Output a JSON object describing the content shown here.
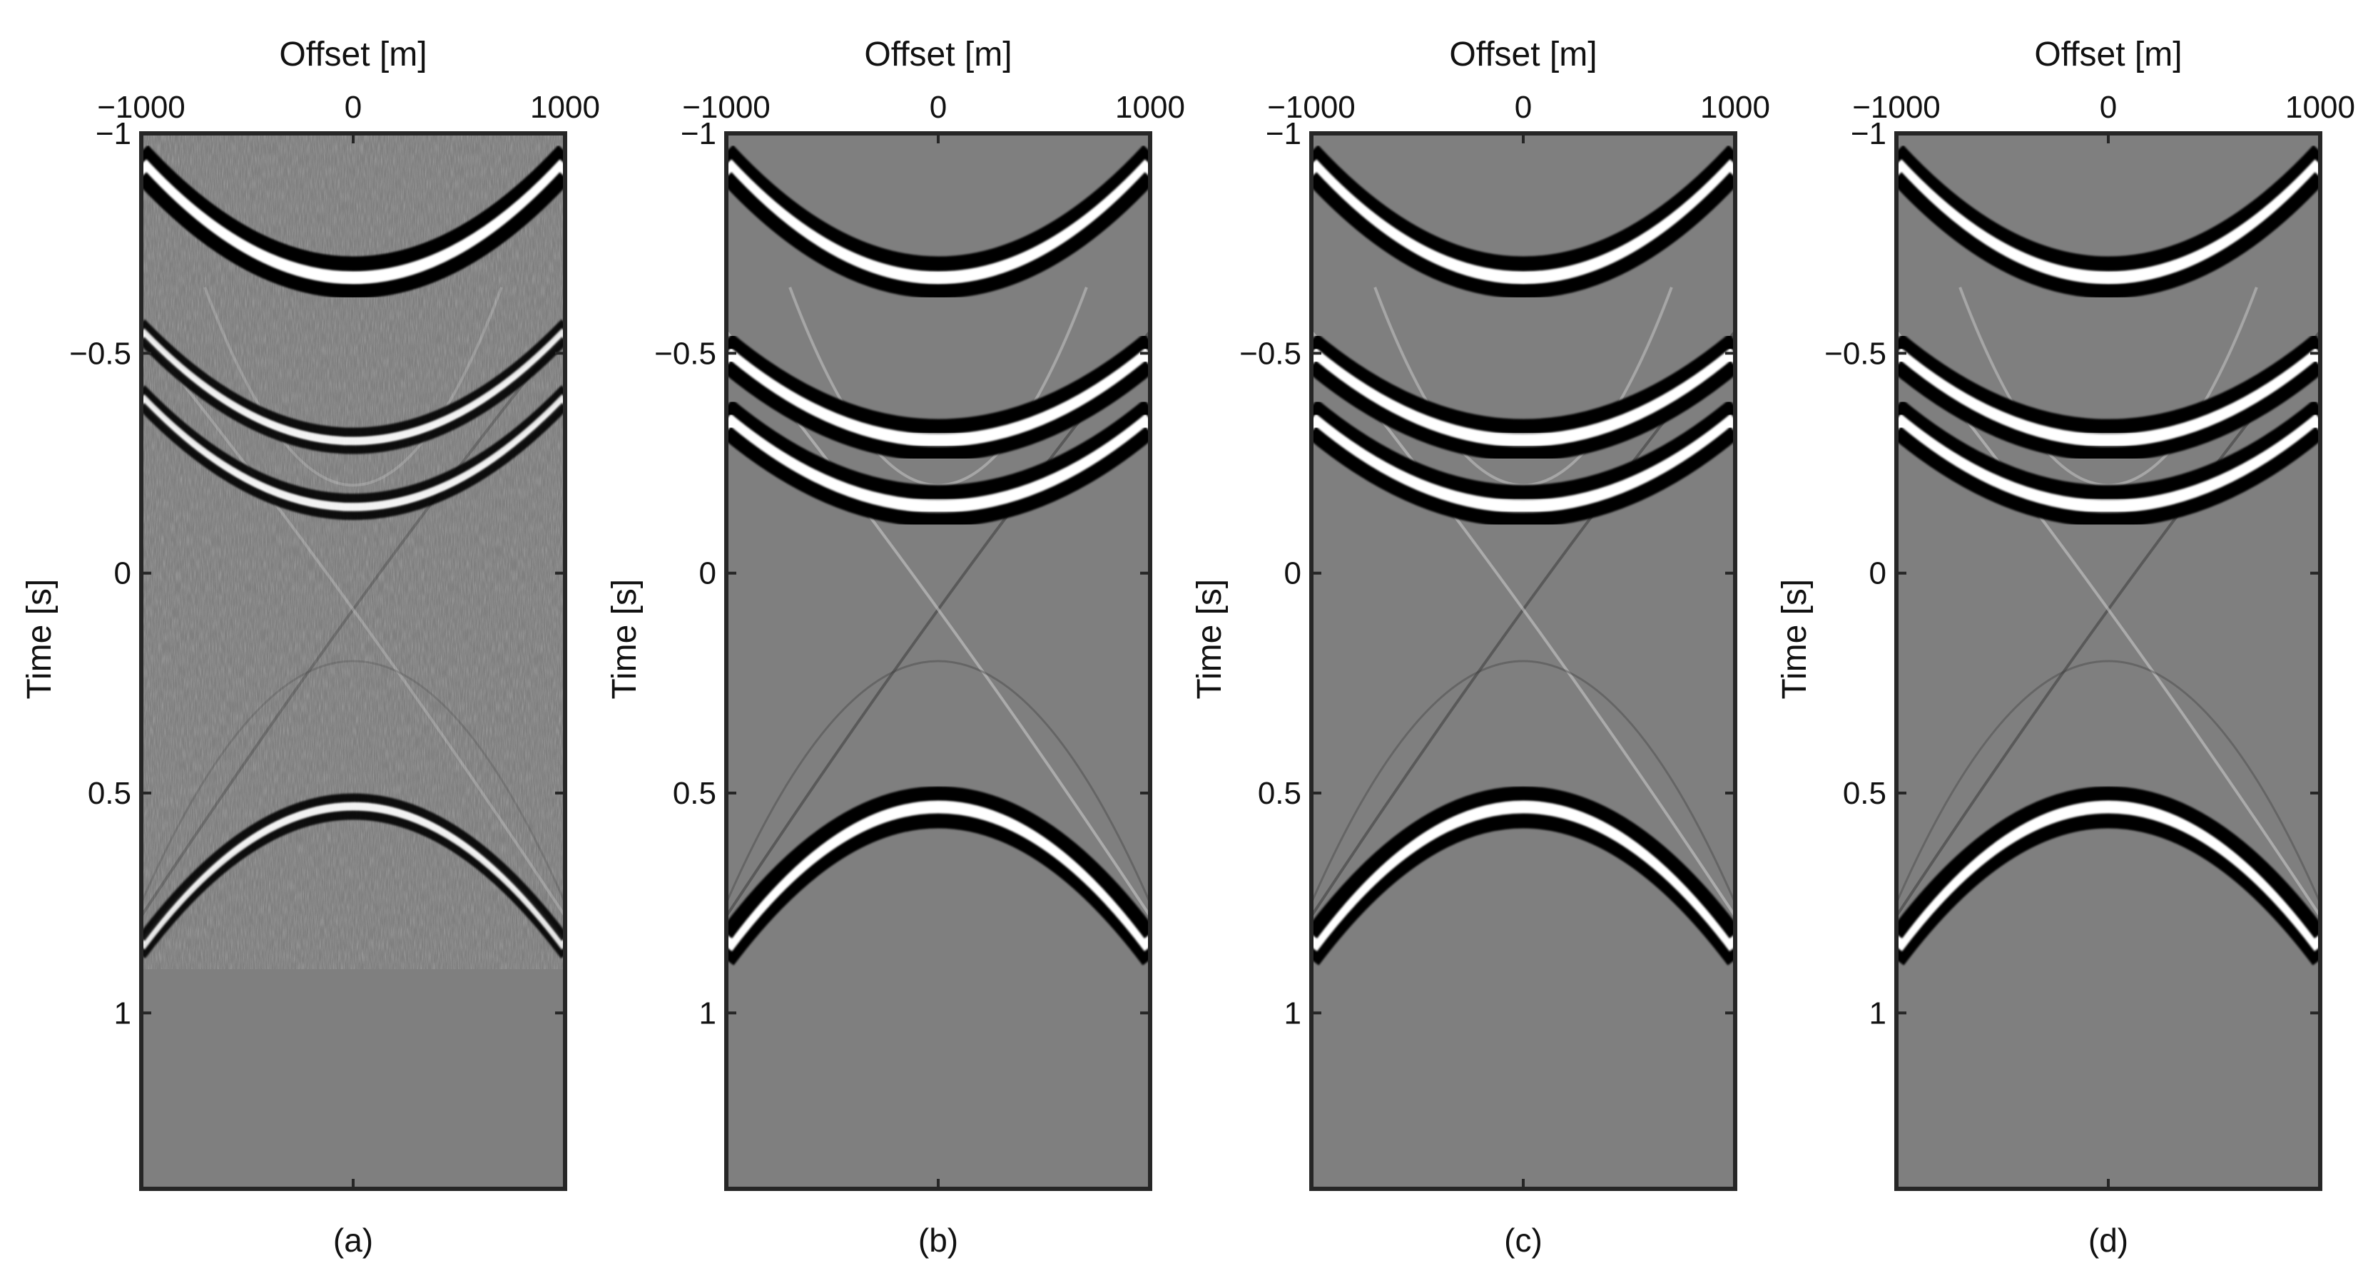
{
  "colors": {
    "panel_background": "#7f7f7f",
    "frame": "#262626",
    "event_dark": "#050505",
    "event_bright": "#ffffff",
    "page": "#ffffff"
  },
  "chart_data": [
    {
      "type": "heatmap",
      "caption": "(a)",
      "xlabel": "Offset [m]",
      "ylabel": "Time [s]",
      "xlim": [
        -1000,
        1000
      ],
      "ylim": [
        -1,
        1.4
      ],
      "y_reversed": true,
      "xticks": [
        -1000,
        0,
        1000
      ],
      "xtick_labels": [
        "−1000",
        "0",
        "1000"
      ],
      "yticks": [
        -1,
        -0.5,
        0,
        0.5,
        1
      ],
      "ytick_labels": [
        "−1",
        "−0.5",
        "0",
        "0.5",
        "1"
      ],
      "events": [
        {
          "kind": "hyperbola_down",
          "apex_time": -0.67,
          "edge_time": -0.93,
          "strength": "strong"
        },
        {
          "kind": "hyperbola_down",
          "apex_time": -0.3,
          "edge_time": -0.55,
          "strength": "medium"
        },
        {
          "kind": "hyperbola_down",
          "apex_time": -0.15,
          "edge_time": -0.4,
          "strength": "medium"
        },
        {
          "kind": "hyperbola_up",
          "apex_time": 0.53,
          "edge_time": 0.85,
          "strength": "medium"
        }
      ],
      "noise": "high"
    },
    {
      "type": "heatmap",
      "caption": "(b)",
      "xlabel": "Offset [m]",
      "ylabel": "Time [s]",
      "xlim": [
        -1000,
        1000
      ],
      "ylim": [
        -1,
        1.4
      ],
      "y_reversed": true,
      "xticks": [
        -1000,
        0,
        1000
      ],
      "xtick_labels": [
        "−1000",
        "0",
        "1000"
      ],
      "yticks": [
        -1,
        -0.5,
        0,
        0.5,
        1
      ],
      "ytick_labels": [
        "−1",
        "−0.5",
        "0",
        "0.5",
        "1"
      ],
      "events": [
        {
          "kind": "hyperbola_down",
          "apex_time": -0.67,
          "edge_time": -0.93,
          "strength": "strong"
        },
        {
          "kind": "hyperbola_down",
          "apex_time": -0.3,
          "edge_time": -0.5,
          "strength": "strong"
        },
        {
          "kind": "hyperbola_down",
          "apex_time": -0.15,
          "edge_time": -0.35,
          "strength": "strong"
        },
        {
          "kind": "hyperbola_up",
          "apex_time": 0.53,
          "edge_time": 0.85,
          "strength": "strong"
        }
      ],
      "noise": "low"
    },
    {
      "type": "heatmap",
      "caption": "(c)",
      "xlabel": "Offset [m]",
      "ylabel": "Time [s]",
      "xlim": [
        -1000,
        1000
      ],
      "ylim": [
        -1,
        1.4
      ],
      "y_reversed": true,
      "xticks": [
        -1000,
        0,
        1000
      ],
      "xtick_labels": [
        "−1000",
        "0",
        "1000"
      ],
      "yticks": [
        -1,
        -0.5,
        0,
        0.5,
        1
      ],
      "ytick_labels": [
        "−1",
        "−0.5",
        "0",
        "0.5",
        "1"
      ],
      "events": [
        {
          "kind": "hyperbola_down",
          "apex_time": -0.67,
          "edge_time": -0.93,
          "strength": "strong"
        },
        {
          "kind": "hyperbola_down",
          "apex_time": -0.3,
          "edge_time": -0.5,
          "strength": "strong"
        },
        {
          "kind": "hyperbola_down",
          "apex_time": -0.15,
          "edge_time": -0.35,
          "strength": "strong"
        },
        {
          "kind": "hyperbola_up",
          "apex_time": 0.53,
          "edge_time": 0.85,
          "strength": "strong"
        }
      ],
      "noise": "low"
    },
    {
      "type": "heatmap",
      "caption": "(d)",
      "xlabel": "Offset [m]",
      "ylabel": "Time [s]",
      "xlim": [
        -1000,
        1000
      ],
      "ylim": [
        -1,
        1.4
      ],
      "y_reversed": true,
      "xticks": [
        -1000,
        0,
        1000
      ],
      "xtick_labels": [
        "−1000",
        "0",
        "1000"
      ],
      "yticks": [
        -1,
        -0.5,
        0,
        0.5,
        1
      ],
      "ytick_labels": [
        "−1",
        "−0.5",
        "0",
        "0.5",
        "1"
      ],
      "events": [
        {
          "kind": "hyperbola_down",
          "apex_time": -0.67,
          "edge_time": -0.93,
          "strength": "strong"
        },
        {
          "kind": "hyperbola_down",
          "apex_time": -0.3,
          "edge_time": -0.5,
          "strength": "strong"
        },
        {
          "kind": "hyperbola_down",
          "apex_time": -0.15,
          "edge_time": -0.35,
          "strength": "strong"
        },
        {
          "kind": "hyperbola_up",
          "apex_time": 0.53,
          "edge_time": 0.85,
          "strength": "strong"
        }
      ],
      "noise": "low"
    }
  ]
}
